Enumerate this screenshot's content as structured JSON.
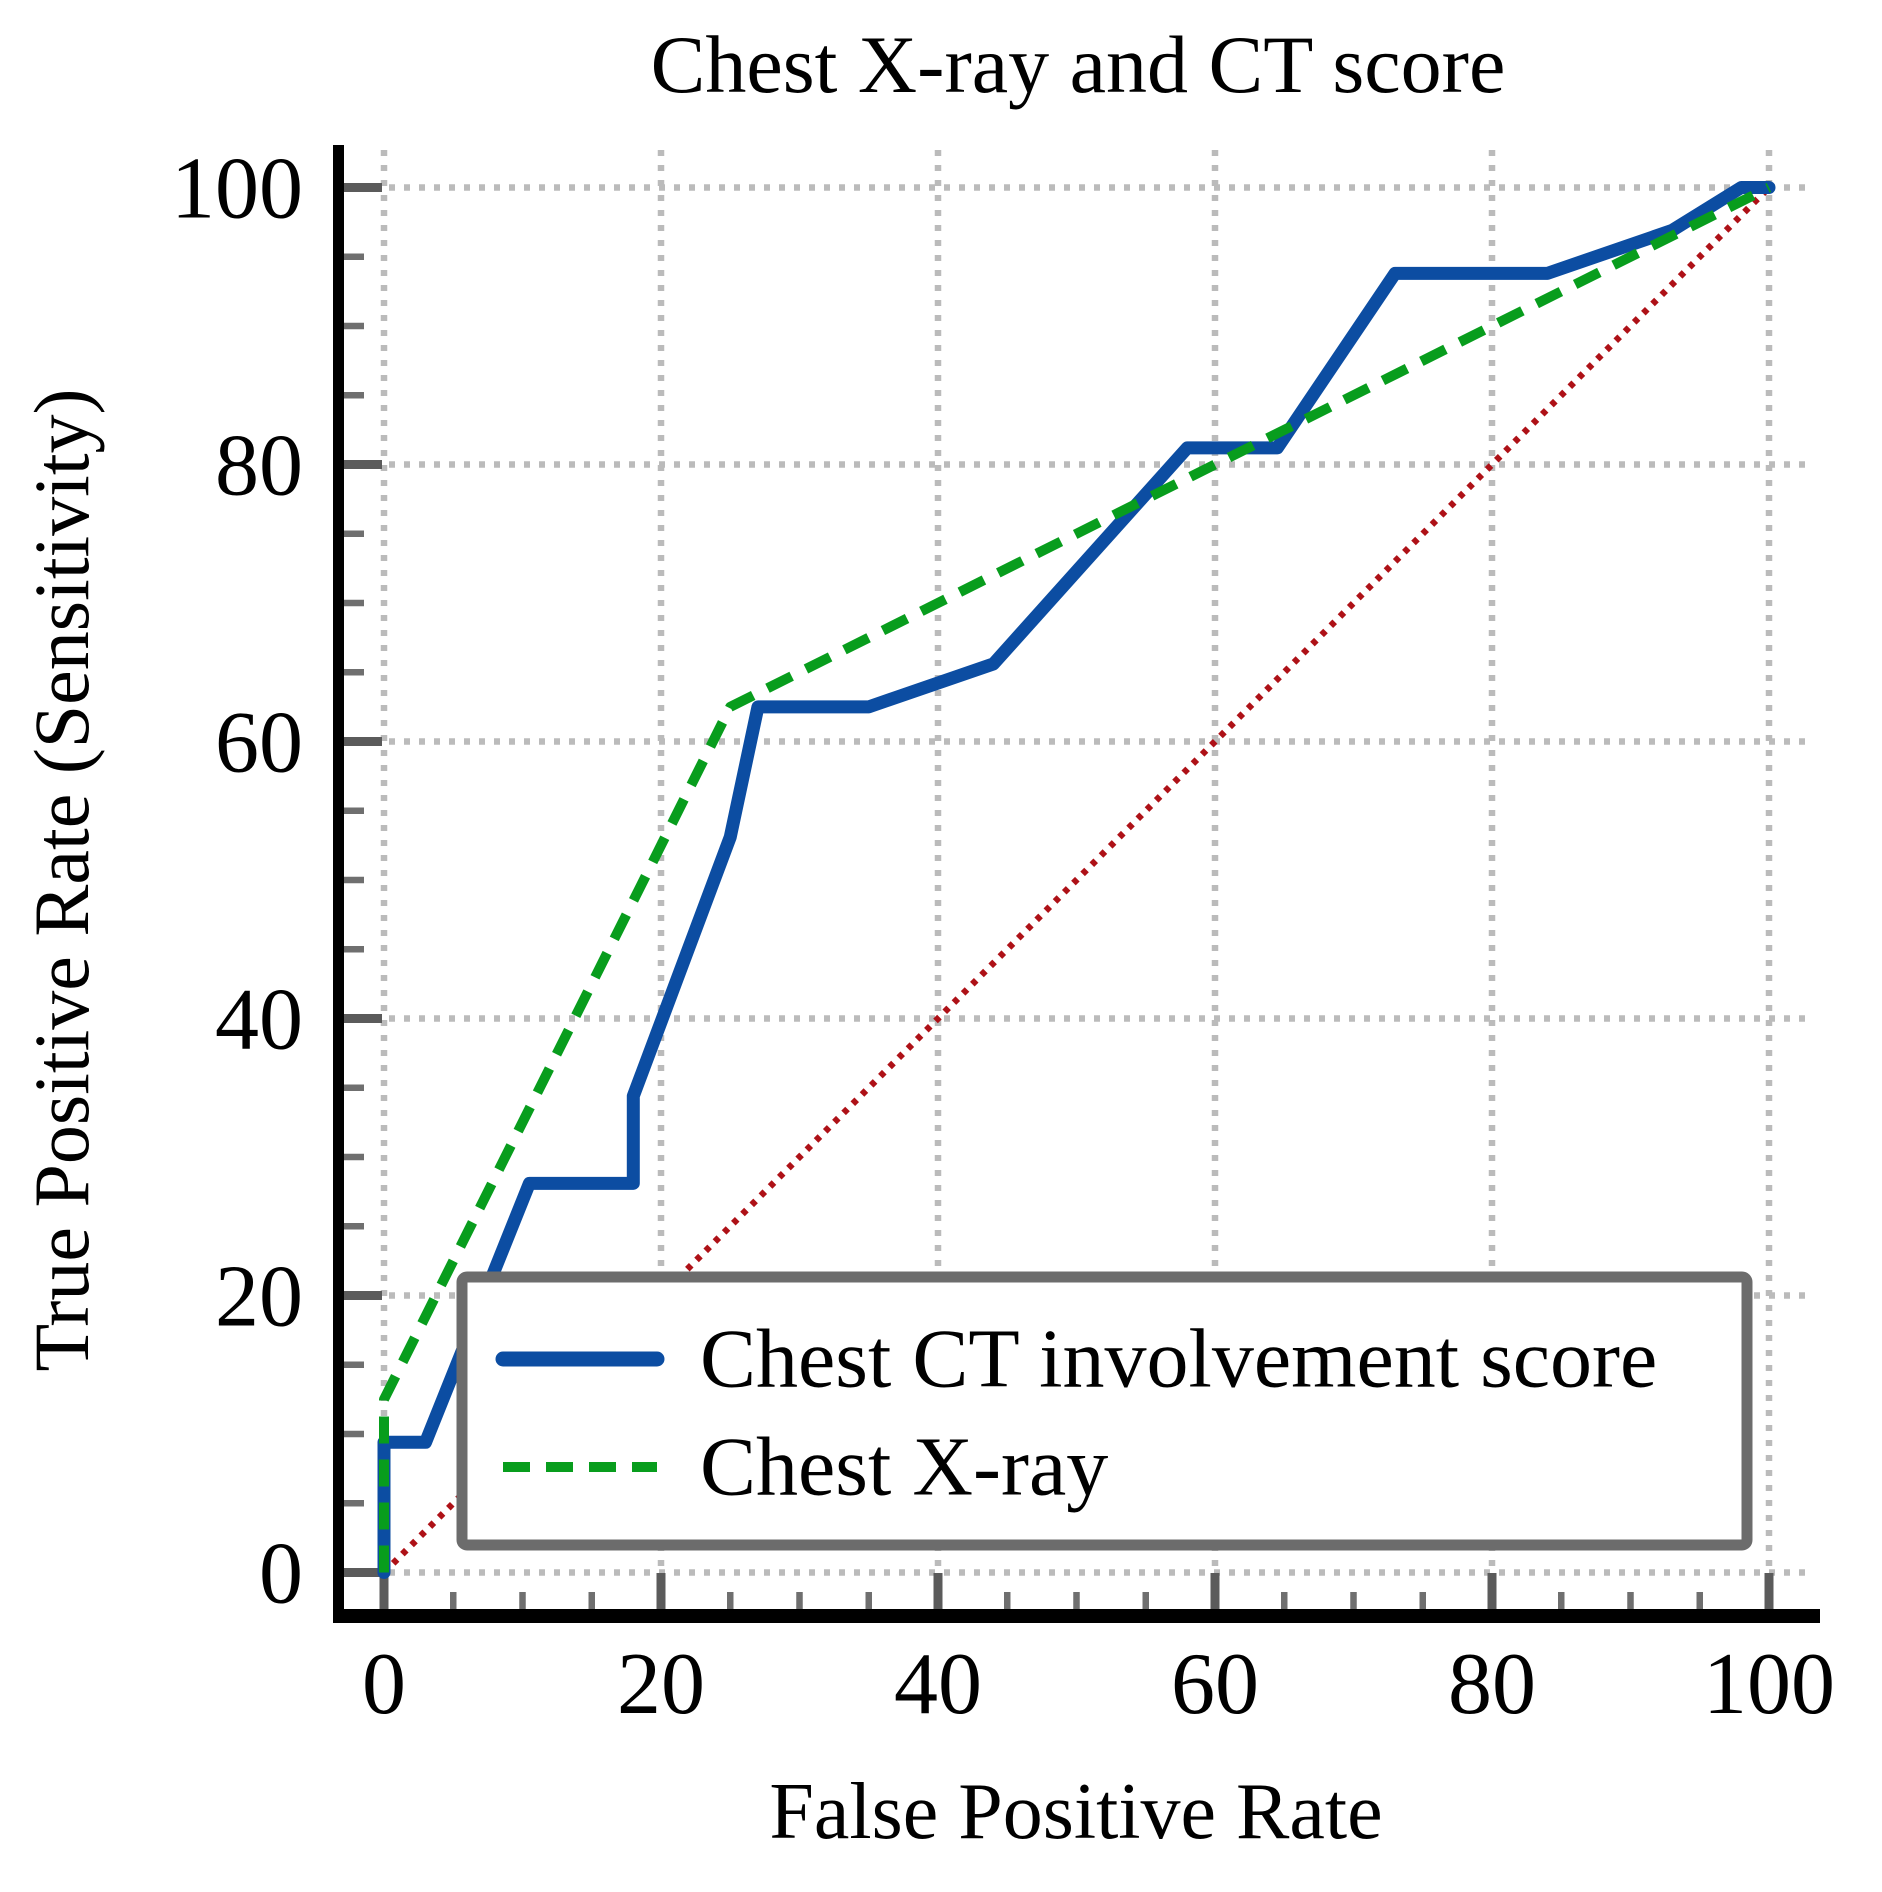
{
  "title": "Chest X-ray and CT score",
  "axes": {
    "x": {
      "label": "False Positive Rate",
      "range": [
        0,
        100
      ],
      "major_ticks": [
        0,
        20,
        40,
        60,
        80,
        100
      ],
      "tick_labels": [
        "0",
        "20",
        "40",
        "60",
        "80",
        "100"
      ],
      "minor_step": 5
    },
    "y": {
      "label": "True Positive Rate (Sensitivity)",
      "range": [
        0,
        100
      ],
      "major_ticks": [
        0,
        20,
        40,
        60,
        80,
        100
      ],
      "tick_labels": [
        "0",
        "20",
        "40",
        "60",
        "80",
        "100"
      ],
      "minor_step": 5
    }
  },
  "legend": {
    "items": [
      {
        "id": "ct",
        "label": "Chest CT involvement score",
        "color": "#0c4da2",
        "style": "solid"
      },
      {
        "id": "xray",
        "label": "Chest X-ray",
        "color": "#089d1d",
        "style": "dashed"
      }
    ]
  },
  "colors": {
    "grid": "#bbbbbb",
    "major_tick": "#5b5b5b",
    "minor_tick": "#6f6f6f",
    "axis": "#000000",
    "legend_border": "#6c6c6c",
    "reference_line": "#ae1117",
    "text": "#000000"
  },
  "chart_data": {
    "type": "line",
    "subtype": "ROC curves",
    "title": "Chest X-ray and CT score",
    "xlabel": "False Positive Rate",
    "ylabel": "True Positive Rate (Sensitivity)",
    "xlim": [
      0,
      100
    ],
    "ylim": [
      0,
      100
    ],
    "grid": true,
    "grid_style": "dotted",
    "legend_position": "inside lower right",
    "series": [
      {
        "id": "ct",
        "name": "Chest CT involvement score",
        "color": "#0c4da2",
        "style": "solid",
        "width": 13,
        "dash": null,
        "points": [
          [
            0,
            0
          ],
          [
            0,
            9.4
          ],
          [
            3,
            9.4
          ],
          [
            10.5,
            28.1
          ],
          [
            18,
            28.1
          ],
          [
            18,
            34.4
          ],
          [
            25,
            53.1
          ],
          [
            27,
            62.5
          ],
          [
            35,
            62.5
          ],
          [
            44,
            65.6
          ],
          [
            58,
            81.2
          ],
          [
            64.5,
            81.2
          ],
          [
            73,
            93.8
          ],
          [
            84,
            93.8
          ],
          [
            93,
            96.9
          ],
          [
            98,
            100
          ],
          [
            100,
            100
          ]
        ]
      },
      {
        "id": "xray",
        "name": "Chest X-ray",
        "color": "#089d1d",
        "style": "dashed",
        "width": 10,
        "dash": "27 16",
        "points": [
          [
            0,
            0
          ],
          [
            0,
            12.5
          ],
          [
            25,
            62.5
          ],
          [
            100,
            100
          ]
        ]
      },
      {
        "id": "diagonal",
        "name": "reference diagonal (chance line)",
        "color": "#ae1117",
        "style": "dotted",
        "width": 6.5,
        "dash": "5.5 7.5",
        "points": [
          [
            0,
            0
          ],
          [
            100,
            100
          ]
        ]
      }
    ]
  }
}
